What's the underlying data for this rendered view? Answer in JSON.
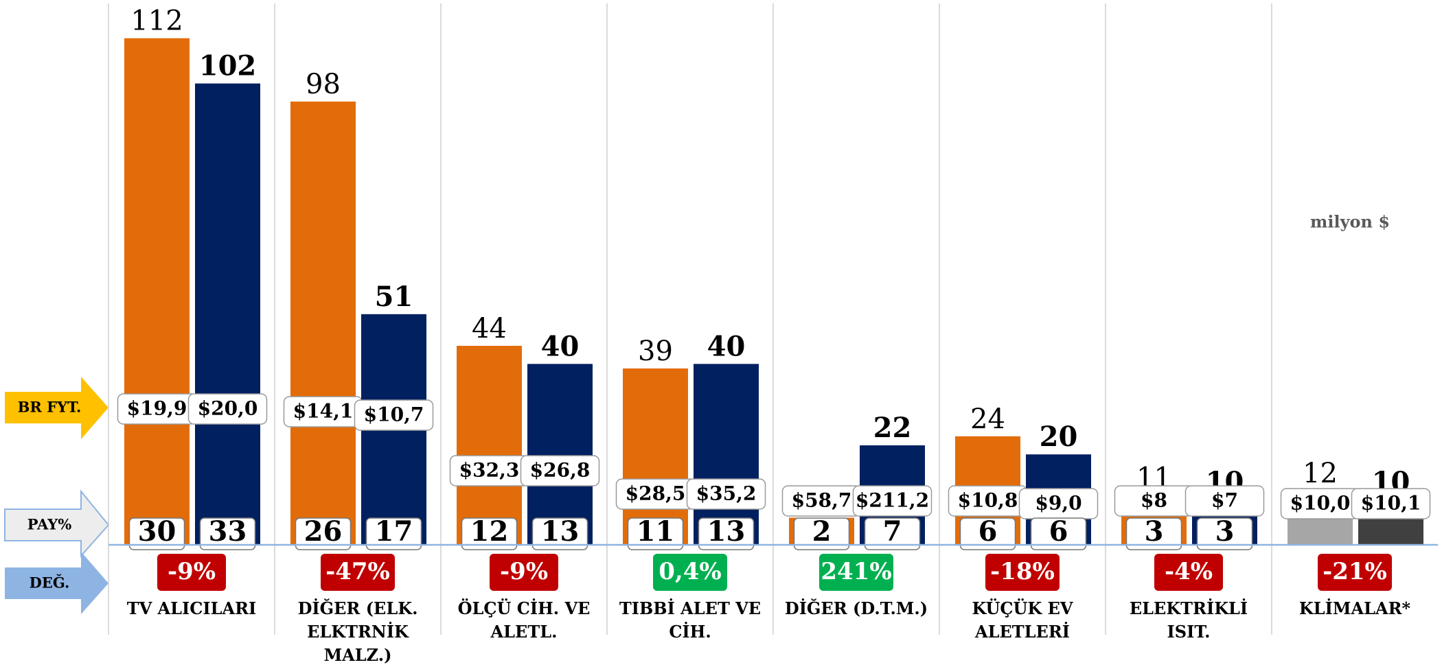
{
  "chart_data": {
    "type": "bar",
    "categories": [
      "TV ALICILARI",
      "DİĞER (ELK. ELKTRNİK MALZ.)",
      "ÖLÇÜ CİH. VE ALETL.",
      "TIBBİ ALET VE CİH.",
      "DİĞER (D.T.M.)",
      "KÜÇÜK EV ALETLERİ",
      "ELEKTRİKLİ ISIT.",
      "KLİMALAR*"
    ],
    "series": [
      {
        "colors": [
          "#e36c0a",
          "#e36c0a",
          "#e36c0a",
          "#e36c0a",
          "#e36c0a",
          "#e36c0a",
          "#e36c0a",
          "#a6a6a6"
        ],
        "values": [
          112,
          98,
          44,
          39,
          6,
          24,
          11,
          12
        ],
        "unit_price": [
          "$19,9",
          "$14,1",
          "$32,3",
          "$28,5",
          "$58,7",
          "$10,8",
          "$8",
          "$10,0"
        ],
        "share": [
          30,
          26,
          12,
          11,
          2,
          6,
          3,
          null
        ]
      },
      {
        "colors": [
          "#002060",
          "#002060",
          "#002060",
          "#002060",
          "#002060",
          "#002060",
          "#002060",
          "#404040"
        ],
        "values": [
          102,
          51,
          40,
          40,
          22,
          20,
          10,
          10
        ],
        "unit_price": [
          "$20,0",
          "$10,7",
          "$26,8",
          "$35,2",
          "$211,2",
          "$9,0",
          "$7",
          "$10,1"
        ],
        "share": [
          33,
          17,
          13,
          13,
          7,
          6,
          3,
          null
        ]
      }
    ],
    "change": {
      "values": [
        -9,
        -47,
        -9,
        0.4,
        241,
        -18,
        -4,
        -21
      ],
      "value_labels": [
        "-9%",
        "-47%",
        "-9%",
        "0,4%",
        "241%",
        "-18%",
        "-4%",
        "-21%"
      ]
    },
    "row_labels": [
      "BR FYT.",
      "PAY%",
      "DEĞ."
    ],
    "annotation": "milyon $",
    "ylim": [
      0,
      120
    ]
  }
}
